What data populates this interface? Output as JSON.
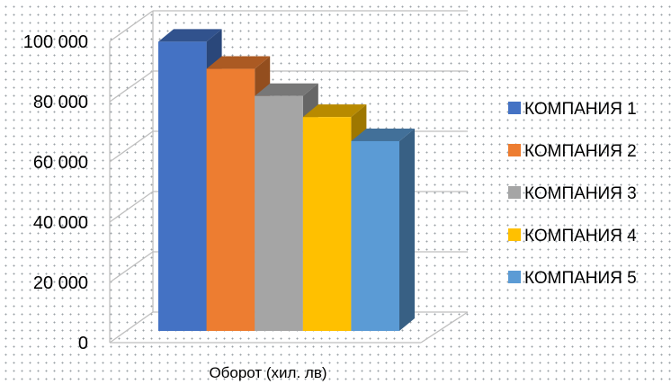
{
  "chart_data": {
    "type": "bar",
    "style": "3d-clustered-column",
    "title": "",
    "xlabel": "Оборот (хил. лв)",
    "ylabel": "",
    "ylim": [
      0,
      100000
    ],
    "yticks": [
      0,
      20000,
      40000,
      60000,
      80000,
      100000
    ],
    "ytick_labels": [
      "0",
      "20 000",
      "40 000",
      "60 000",
      "80 000",
      "100 000"
    ],
    "grid": true,
    "legend_position": "right",
    "categories": [
      "Оборот (хил. лв)"
    ],
    "series": [
      {
        "name": "КОМПАНИЯ 1",
        "values": [
          96000
        ],
        "color": "#4472c4"
      },
      {
        "name": "КОМПАНИЯ 2",
        "values": [
          87000
        ],
        "color": "#ed7d31"
      },
      {
        "name": "КОМПАНИЯ 3",
        "values": [
          78000
        ],
        "color": "#a5a5a5"
      },
      {
        "name": "КОМПАНИЯ 4",
        "values": [
          71000
        ],
        "color": "#ffc000"
      },
      {
        "name": "КОМПАНИЯ 5",
        "values": [
          63000
        ],
        "color": "#5b9bd5"
      }
    ]
  }
}
